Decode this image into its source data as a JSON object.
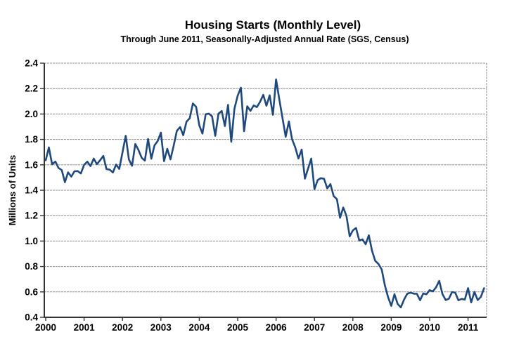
{
  "chart_data": {
    "type": "line",
    "title": "Housing Starts (Monthly Level)",
    "subtitle": "Through June 2011, Seasonally-Adjusted Annual Rate (SGS, Census)",
    "ylabel": "Millions of Units",
    "xlabel": "",
    "ylim": [
      0.4,
      2.4
    ],
    "ytick_step": 0.2,
    "ytick_labels": [
      "0.4",
      "0.6",
      "0.8",
      "1.0",
      "1.2",
      "1.4",
      "1.6",
      "1.8",
      "2.0",
      "2.2",
      "2.4"
    ],
    "x_tick_labels": [
      "2000",
      "2001",
      "2002",
      "2003",
      "2004",
      "2005",
      "2006",
      "2007",
      "2008",
      "2009",
      "2010",
      "2011"
    ],
    "grid": true,
    "legend_position": "none",
    "line_color": "#1F497D",
    "gridline_color": "#8C8C8C",
    "axis_color": "#333333",
    "text_color": "#000000",
    "background_color": "#FFFFFF",
    "series": [
      {
        "name": "Housing Starts",
        "units": "millions of units, seasonally-adjusted annual rate",
        "start_month": "2000-01",
        "end_month": "2011-06",
        "monthly_values": [
          1.636,
          1.737,
          1.604,
          1.626,
          1.575,
          1.559,
          1.463,
          1.541,
          1.507,
          1.549,
          1.551,
          1.532,
          1.6,
          1.625,
          1.59,
          1.649,
          1.605,
          1.636,
          1.67,
          1.567,
          1.562,
          1.54,
          1.602,
          1.568,
          1.698,
          1.829,
          1.642,
          1.592,
          1.764,
          1.717,
          1.655,
          1.633,
          1.804,
          1.648,
          1.753,
          1.788,
          1.853,
          1.629,
          1.726,
          1.643,
          1.751,
          1.867,
          1.897,
          1.833,
          1.939,
          1.967,
          2.083,
          2.057,
          1.911,
          1.846,
          1.998,
          2.003,
          1.981,
          1.828,
          2.002,
          2.024,
          1.905,
          2.072,
          1.782,
          2.042,
          2.144,
          2.207,
          1.864,
          2.061,
          2.025,
          2.068,
          2.054,
          2.095,
          2.151,
          2.065,
          2.147,
          1.994,
          2.273,
          2.119,
          1.969,
          1.821,
          1.942,
          1.802,
          1.737,
          1.65,
          1.72,
          1.491,
          1.57,
          1.649,
          1.409,
          1.48,
          1.495,
          1.49,
          1.415,
          1.448,
          1.354,
          1.33,
          1.183,
          1.264,
          1.197,
          1.037,
          1.084,
          1.103,
          1.005,
          1.013,
          0.975,
          1.046,
          0.923,
          0.844,
          0.82,
          0.777,
          0.652,
          0.56,
          0.49,
          0.582,
          0.505,
          0.478,
          0.54,
          0.585,
          0.594,
          0.586,
          0.585,
          0.534,
          0.588,
          0.581,
          0.614,
          0.604,
          0.636,
          0.687,
          0.583,
          0.536,
          0.546,
          0.599,
          0.594,
          0.534,
          0.545,
          0.539,
          0.63,
          0.517,
          0.6,
          0.536,
          0.56,
          0.629
        ]
      }
    ]
  }
}
